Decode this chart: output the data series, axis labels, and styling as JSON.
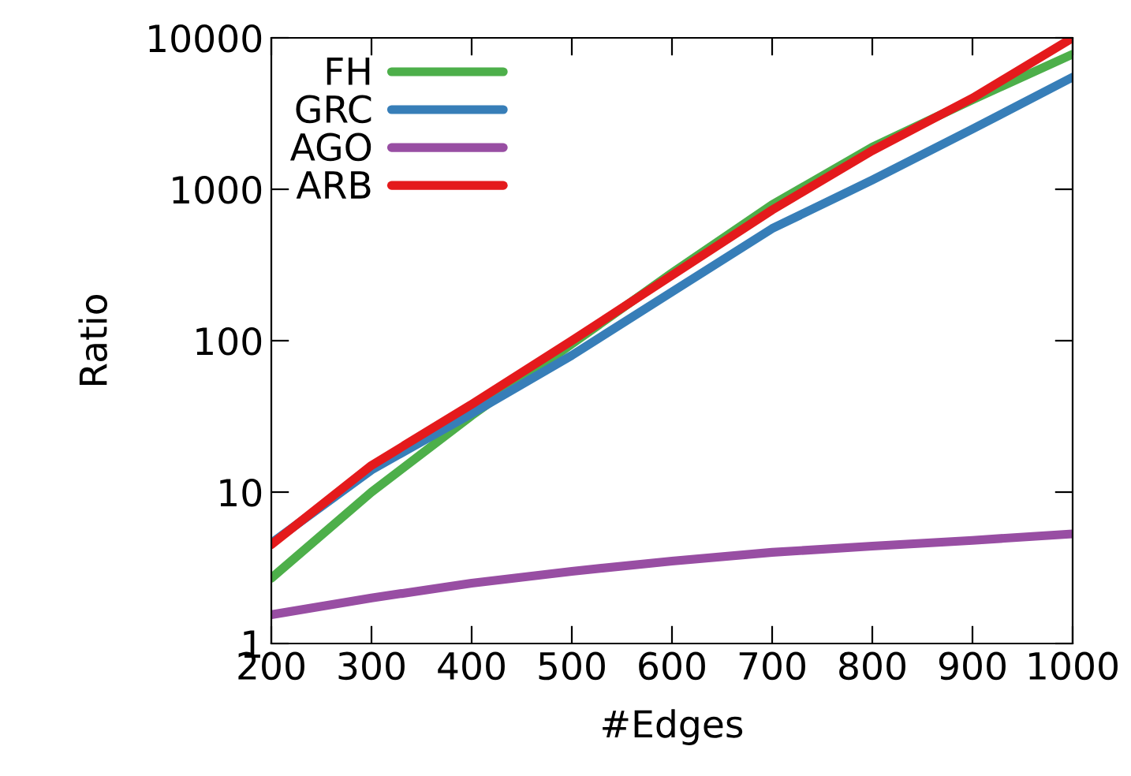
{
  "chart_data": {
    "type": "line",
    "xlabel": "#Edges",
    "ylabel": "Ratio",
    "log": "y",
    "x": [
      200,
      300,
      400,
      500,
      600,
      700,
      800,
      900,
      1000
    ],
    "series": [
      {
        "name": "FH",
        "color": "#4daf4a",
        "values": [
          2.7,
          10,
          32,
          95,
          280,
          790,
          1900,
          3900,
          7800
        ]
      },
      {
        "name": "GRC",
        "color": "#377eb8",
        "values": [
          4.6,
          14,
          33,
          80,
          210,
          550,
          1150,
          2500,
          5500
        ]
      },
      {
        "name": "AGO",
        "color": "#984ea3",
        "values": [
          1.55,
          2.0,
          2.5,
          3.0,
          3.5,
          4.0,
          4.4,
          4.8,
          5.3
        ]
      },
      {
        "name": "ARB",
        "color": "#e41a1c",
        "values": [
          4.5,
          15,
          38,
          100,
          270,
          730,
          1800,
          4000,
          10000
        ]
      }
    ],
    "xlim": [
      200,
      1000
    ],
    "xticks": [
      200,
      300,
      400,
      500,
      600,
      700,
      800,
      900,
      1000
    ],
    "ylim": [
      1,
      10000
    ],
    "yticks": [
      1,
      10,
      100,
      1000,
      10000
    ],
    "grid": false,
    "legend": "top left",
    "marker": "none",
    "line_style": "solid"
  }
}
